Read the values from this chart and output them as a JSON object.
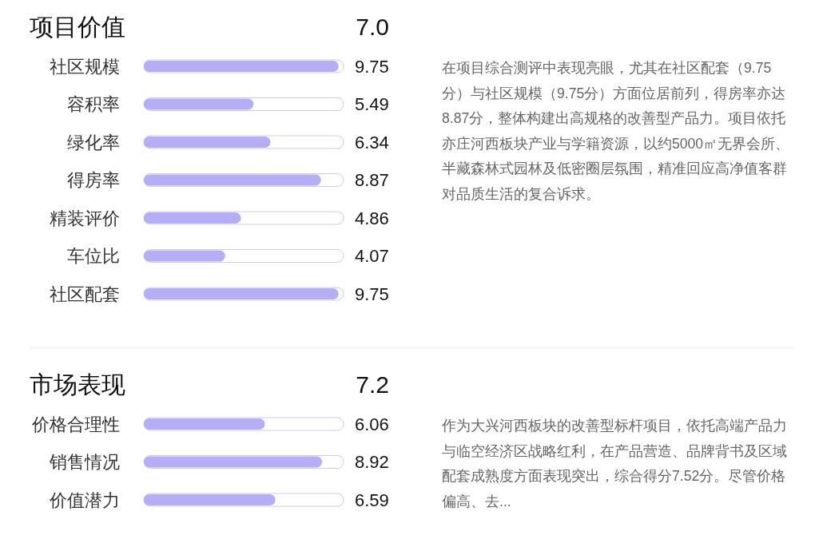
{
  "chart_data": [
    {
      "type": "bar",
      "orientation": "horizontal",
      "title": "项目价值",
      "annotations": [
        "7.0",
        "在项目综合测评中表现亮眼，尤其在社区配套（9.75分）与社区规模（9.75分）方面位居前列，得房率亦达8.87分，整体构建出高规格的改善型产品力。项目依托亦庄河西板块产业与学籍资源，以约5000㎡无界会所、半藏森林式园林及低密圈层氛围，精准回应高净值客群对品质生活的复合诉求。"
      ],
      "categories": [
        "社区规模",
        "容积率",
        "绿化率",
        "得房率",
        "精装评价",
        "车位比",
        "社区配套"
      ],
      "values": [
        9.75,
        5.49,
        6.34,
        8.87,
        4.86,
        4.07,
        9.75
      ],
      "color": "#b3aef6",
      "xlim": [
        0,
        10
      ],
      "data_labels": true,
      "tick_labels": "y"
    },
    {
      "type": "bar",
      "orientation": "horizontal",
      "title": "市场表现",
      "annotations": [
        "7.2",
        "作为大兴河西板块的改善型标杆项目，依托高端产品力与临空经济区战略红利，在产品营造、品牌背书及区域配套成熟度方面表现突出，综合得分7.52分。尽管价格偏高、去..."
      ],
      "categories": [
        "价格合理性",
        "销售情况",
        "价值潜力"
      ],
      "values": [
        6.06,
        8.92,
        6.59
      ],
      "color": "#b3aef6",
      "xlim": [
        0,
        10
      ],
      "data_labels": true,
      "tick_labels": "y"
    }
  ]
}
